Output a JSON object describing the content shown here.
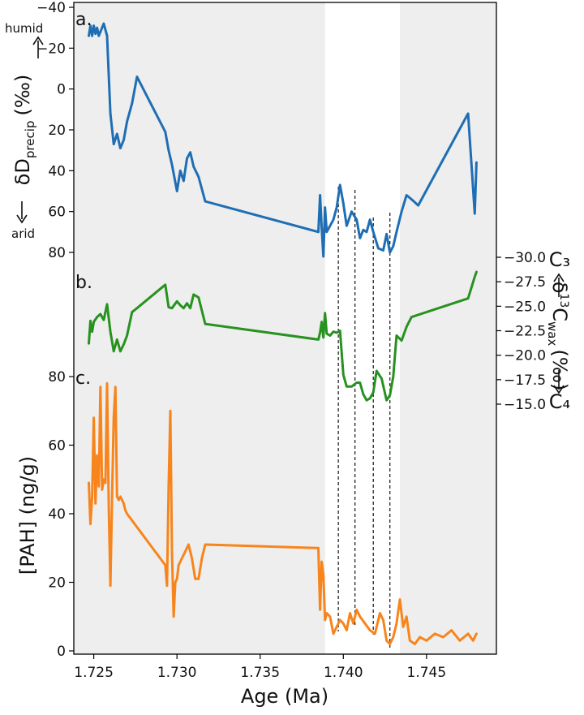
{
  "chart_data": {
    "type": "line",
    "xlabel": "Age (Ma)",
    "xlim": [
      1.7238,
      1.7492
    ],
    "x_ticks": [
      "1.725",
      "1.730",
      "1.735",
      "1.740",
      "1.745"
    ],
    "x_tick_values": [
      1.725,
      1.73,
      1.735,
      1.74,
      1.745
    ],
    "shaded_intervals": [
      [
        1.7238,
        1.7389
      ],
      [
        1.7434,
        1.7492
      ]
    ],
    "shade_color": "#eeeeee",
    "dashed_markers": [
      1.7397,
      1.7407,
      1.7418,
      1.7428
    ],
    "panels": [
      {
        "label": "a.",
        "color": "#1f6eb4",
        "ylabel_parts": {
          "main": "δD",
          "sub": "precip",
          "unit": "(‰)"
        },
        "annotation_top": "humid",
        "annotation_bottom": "arid",
        "axis_side": "left",
        "inverted": true,
        "ylim": [
          -40,
          80
        ],
        "y_ticks": [
          "−40",
          "−20",
          "0",
          "20",
          "40",
          "60",
          "80"
        ],
        "y_tick_values": [
          -40,
          -20,
          0,
          20,
          40,
          60,
          80
        ],
        "series": {
          "x": [
            1.7247,
            1.7248,
            1.7249,
            1.725,
            1.7251,
            1.7252,
            1.7253,
            1.7254,
            1.7256,
            1.7258,
            1.726,
            1.7262,
            1.7264,
            1.7266,
            1.7268,
            1.727,
            1.7273,
            1.7276,
            1.7293,
            1.7295,
            1.7297,
            1.73,
            1.7302,
            1.7304,
            1.7306,
            1.7308,
            1.731,
            1.7313,
            1.7317,
            1.7385,
            1.7386,
            1.7387,
            1.7388,
            1.7389,
            1.739,
            1.7392,
            1.7394,
            1.7396,
            1.7398,
            1.74,
            1.7402,
            1.7405,
            1.7408,
            1.741,
            1.7412,
            1.7414,
            1.7416,
            1.7418,
            1.7421,
            1.7424,
            1.7426,
            1.7428,
            1.743,
            1.7432,
            1.7435,
            1.7438,
            1.7441,
            1.7445,
            1.7475,
            1.7479,
            1.748
          ],
          "y": [
            -26,
            -31,
            -26,
            -31,
            -27,
            -30,
            -26,
            -28,
            -32,
            -26,
            12,
            27,
            22,
            29,
            25,
            16,
            7,
            -6,
            21,
            30,
            37,
            50,
            40,
            45,
            34,
            31,
            38,
            43,
            55,
            70,
            52,
            68,
            82,
            58,
            70,
            67,
            64,
            58,
            47,
            56,
            67,
            60,
            64,
            73,
            69,
            70,
            64,
            70,
            78,
            79,
            71,
            80,
            77,
            70,
            60,
            52,
            54,
            57,
            12,
            61,
            36
          ]
        }
      },
      {
        "label": "b.",
        "color": "#27921f",
        "ylabel_parts": {
          "main": "δ",
          "sup": "13",
          "main2": "C",
          "sub": "wax",
          "unit": "(‰)"
        },
        "annotation_top": "C₃",
        "annotation_bottom": "C₄",
        "axis_side": "right",
        "inverted": true,
        "ylim": [
          -30.0,
          -15.0
        ],
        "y_ticks": [
          "−30.0",
          "−27.5",
          "−25.0",
          "−22.5",
          "−20.0",
          "−17.5",
          "−15.0"
        ],
        "y_tick_values": [
          -30.0,
          -27.5,
          -25.0,
          -22.5,
          -20.0,
          -17.5,
          -15.0
        ],
        "series": {
          "x": [
            1.7247,
            1.7248,
            1.7249,
            1.725,
            1.7252,
            1.7254,
            1.7256,
            1.7258,
            1.726,
            1.7262,
            1.7264,
            1.7266,
            1.7268,
            1.727,
            1.7273,
            1.7276,
            1.7293,
            1.7295,
            1.7297,
            1.73,
            1.7302,
            1.7304,
            1.7306,
            1.7308,
            1.731,
            1.7313,
            1.7317,
            1.7385,
            1.7386,
            1.7387,
            1.7388,
            1.7389,
            1.739,
            1.7392,
            1.7394,
            1.7396,
            1.7398,
            1.74,
            1.7402,
            1.7405,
            1.7408,
            1.741,
            1.7412,
            1.7414,
            1.7416,
            1.7418,
            1.742,
            1.7423,
            1.7426,
            1.7428,
            1.743,
            1.7432,
            1.7435,
            1.7438,
            1.7441,
            1.7475,
            1.7479,
            1.748
          ],
          "y": [
            -21.2,
            -23.5,
            -22.4,
            -23.4,
            -23.9,
            -24.2,
            -23.6,
            -25.2,
            -22.4,
            -20.4,
            -21.6,
            -20.4,
            -21.1,
            -22.0,
            -24.4,
            -24.8,
            -27.2,
            -24.9,
            -24.8,
            -25.5,
            -25.1,
            -24.8,
            -25.3,
            -24.8,
            -26.2,
            -25.9,
            -23.2,
            -21.6,
            -22.3,
            -23.4,
            -21.8,
            -24.3,
            -22.2,
            -22.0,
            -22.4,
            -22.3,
            -22.5,
            -18.0,
            -16.8,
            -16.8,
            -17.2,
            -17.2,
            -16.0,
            -15.4,
            -15.6,
            -16.2,
            -18.4,
            -17.6,
            -15.4,
            -15.9,
            -17.8,
            -22.0,
            -21.5,
            -22.9,
            -23.9,
            -25.8,
            -28.0,
            -28.5
          ]
        }
      },
      {
        "label": "c.",
        "color": "#f7851c",
        "ylabel": "[PAH] (ng/g)",
        "axis_side": "left",
        "inverted": false,
        "ylim": [
          0,
          80
        ],
        "y_ticks": [
          "0",
          "20",
          "40",
          "60",
          "80"
        ],
        "y_tick_values": [
          0,
          20,
          40,
          60,
          80
        ],
        "series": {
          "x": [
            1.7247,
            1.7248,
            1.7249,
            1.725,
            1.7251,
            1.7252,
            1.7253,
            1.7254,
            1.7255,
            1.7256,
            1.7257,
            1.7258,
            1.7259,
            1.726,
            1.7261,
            1.7262,
            1.7263,
            1.7264,
            1.7265,
            1.7266,
            1.7267,
            1.7268,
            1.7269,
            1.727,
            1.7293,
            1.7294,
            1.7295,
            1.7296,
            1.7297,
            1.7298,
            1.7299,
            1.73,
            1.7301,
            1.7302,
            1.7303,
            1.7305,
            1.7307,
            1.7309,
            1.7311,
            1.7313,
            1.7315,
            1.7317,
            1.7385,
            1.7386,
            1.7387,
            1.7388,
            1.7389,
            1.739,
            1.7392,
            1.7394,
            1.7396,
            1.7398,
            1.74,
            1.7402,
            1.7404,
            1.7406,
            1.7408,
            1.741,
            1.7413,
            1.7416,
            1.7419,
            1.7422,
            1.7424,
            1.7426,
            1.7428,
            1.743,
            1.7432,
            1.7434,
            1.7436,
            1.7438,
            1.744,
            1.7443,
            1.7446,
            1.745,
            1.7455,
            1.746,
            1.7465,
            1.747,
            1.7475,
            1.7478,
            1.748
          ],
          "y": [
            49,
            37,
            45,
            68,
            43,
            57,
            48,
            77,
            47,
            50,
            49,
            78,
            42,
            19,
            45,
            68,
            77,
            45,
            44,
            45,
            44,
            43,
            41,
            40,
            25,
            19,
            48,
            70,
            29,
            10,
            20,
            21,
            25,
            26,
            27,
            29,
            31,
            27,
            21,
            21,
            27,
            31,
            30,
            12,
            26,
            22,
            9,
            11,
            10,
            5,
            7,
            9,
            8,
            6,
            11,
            8,
            12,
            10,
            8,
            6,
            5,
            11,
            9,
            3,
            2,
            4,
            8,
            15,
            7,
            10,
            3,
            2,
            4,
            3,
            5,
            4,
            6,
            3,
            5,
            3,
            5
          ]
        }
      }
    ]
  }
}
